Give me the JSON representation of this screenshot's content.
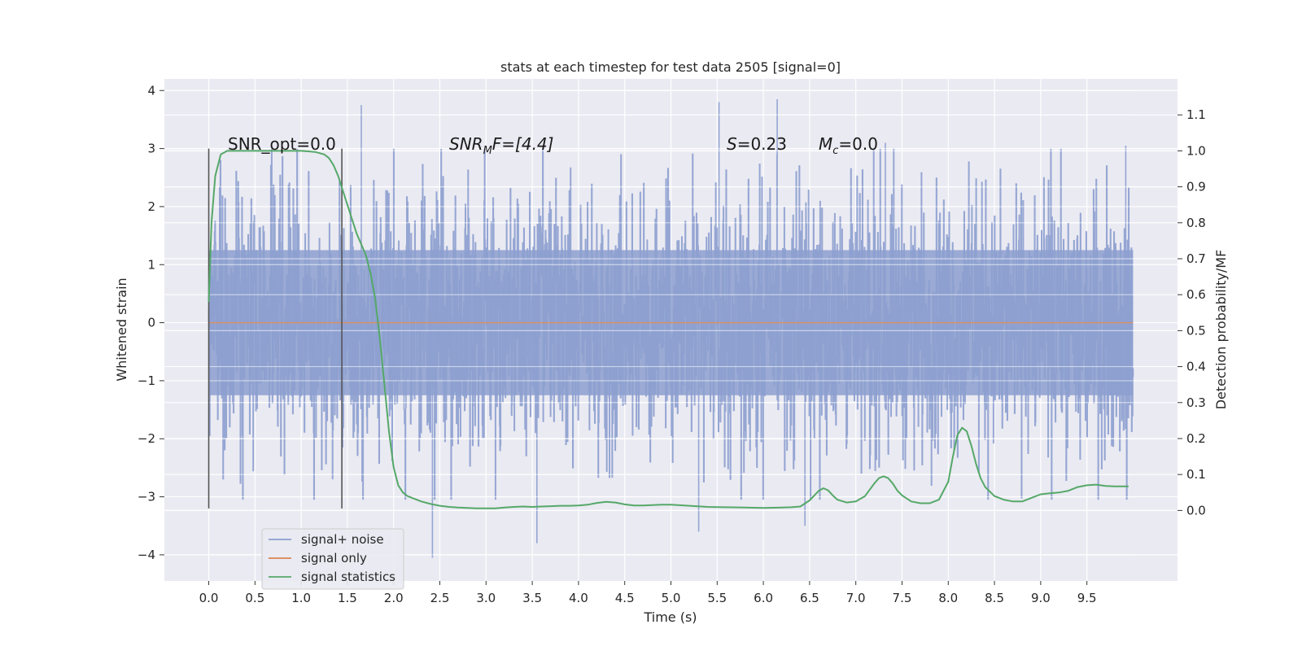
{
  "chart_data": {
    "type": "line",
    "title": "stats at each timestep for test data 2505 [signal=0]",
    "xlabel": "Time (s)",
    "ylabel": "Whitened strain",
    "y2label": "Detection probability/MF",
    "xlim": [
      -0.48,
      10.48
    ],
    "ylim": [
      -4.45,
      4.2
    ],
    "y2lim": [
      -0.196,
      1.2
    ],
    "x_ticks": [
      "0.0",
      "0.5",
      "1.0",
      "1.5",
      "2.0",
      "2.5",
      "3.0",
      "3.5",
      "4.0",
      "4.5",
      "5.0",
      "5.5",
      "6.0",
      "6.5",
      "7.0",
      "7.5",
      "8.0",
      "8.5",
      "9.0",
      "9.5"
    ],
    "y_ticks": [
      "4",
      "3",
      "2",
      "1",
      "0",
      "−1",
      "−2",
      "−3",
      "−4"
    ],
    "y2_ticks": [
      "1.1",
      "1.0",
      "0.9",
      "0.8",
      "0.7",
      "0.6",
      "0.5",
      "0.4",
      "0.3",
      "0.2",
      "0.1",
      "0.0"
    ],
    "grid": true,
    "legend_position": "lower-left",
    "colors": {
      "background": "#eaeaf2",
      "grid": "#ffffff",
      "signal_noise": "#8c9fcf",
      "signal_only": "#dd8452",
      "signal_statistics": "#55a868",
      "markers": "#555555"
    },
    "annotations": {
      "snr_opt": "SNR_opt=0.0",
      "snr_mf_base": "SNR",
      "snr_mf_sub": "M",
      "snr_mf_rest": "F=[4.4]",
      "s_italic": "S",
      "s_rest": "=0.23",
      "mc_base": "M",
      "mc_sub": "c",
      "mc_rest": "=0.0"
    },
    "vertical_markers": [
      0.0,
      1.44
    ],
    "series": [
      {
        "name": "signal+ noise",
        "kind": "noise",
        "x_range": [
          0.0,
          10.0
        ],
        "amplitude_core": 1.25,
        "notable_peaks": [
          {
            "x": 1.65,
            "y": 3.75
          },
          {
            "x": 5.52,
            "y": 3.8
          },
          {
            "x": 6.15,
            "y": 3.85
          },
          {
            "x": 7.32,
            "y": 3.1
          },
          {
            "x": 9.92,
            "y": 3.05
          },
          {
            "x": 2.42,
            "y": -4.05
          },
          {
            "x": 3.55,
            "y": -3.8
          },
          {
            "x": 5.3,
            "y": -3.6
          },
          {
            "x": 6.45,
            "y": -3.5
          }
        ]
      },
      {
        "name": "signal only",
        "kind": "line",
        "x": [
          0.0,
          10.0
        ],
        "y": [
          0.0,
          0.0
        ]
      },
      {
        "name": "signal statistics",
        "kind": "line",
        "axis": "right",
        "x": [
          0.0,
          0.03,
          0.07,
          0.13,
          0.2,
          0.3,
          0.5,
          0.8,
          1.0,
          1.15,
          1.25,
          1.3,
          1.35,
          1.4,
          1.45,
          1.5,
          1.55,
          1.6,
          1.65,
          1.7,
          1.75,
          1.8,
          1.85,
          1.9,
          1.95,
          2.0,
          2.05,
          2.1,
          2.15,
          2.2,
          2.3,
          2.4,
          2.5,
          2.6,
          2.7,
          2.8,
          2.9,
          3.0,
          3.1,
          3.2,
          3.3,
          3.4,
          3.5,
          3.6,
          3.7,
          3.8,
          3.9,
          4.0,
          4.1,
          4.2,
          4.3,
          4.4,
          4.5,
          4.6,
          4.7,
          4.8,
          4.9,
          5.0,
          5.2,
          5.4,
          5.6,
          5.8,
          6.0,
          6.2,
          6.3,
          6.4,
          6.5,
          6.6,
          6.65,
          6.7,
          6.75,
          6.8,
          6.9,
          7.0,
          7.1,
          7.2,
          7.25,
          7.3,
          7.35,
          7.4,
          7.45,
          7.5,
          7.6,
          7.7,
          7.8,
          7.9,
          8.0,
          8.05,
          8.1,
          8.15,
          8.2,
          8.25,
          8.3,
          8.35,
          8.4,
          8.5,
          8.6,
          8.7,
          8.8,
          8.9,
          9.0,
          9.1,
          9.2,
          9.3,
          9.4,
          9.5,
          9.6,
          9.7,
          9.8,
          9.9,
          9.95
        ],
        "y": [
          0.58,
          0.8,
          0.93,
          0.99,
          1.0,
          1.0,
          1.0,
          1.0,
          1.0,
          0.997,
          0.99,
          0.98,
          0.96,
          0.93,
          0.89,
          0.85,
          0.81,
          0.77,
          0.74,
          0.71,
          0.66,
          0.59,
          0.48,
          0.35,
          0.22,
          0.12,
          0.07,
          0.05,
          0.04,
          0.035,
          0.025,
          0.018,
          0.013,
          0.01,
          0.008,
          0.007,
          0.006,
          0.006,
          0.006,
          0.008,
          0.01,
          0.011,
          0.01,
          0.011,
          0.012,
          0.013,
          0.013,
          0.014,
          0.016,
          0.021,
          0.024,
          0.022,
          0.017,
          0.014,
          0.014,
          0.015,
          0.016,
          0.016,
          0.013,
          0.01,
          0.009,
          0.008,
          0.007,
          0.008,
          0.009,
          0.011,
          0.028,
          0.055,
          0.062,
          0.056,
          0.042,
          0.03,
          0.022,
          0.025,
          0.04,
          0.075,
          0.09,
          0.095,
          0.09,
          0.075,
          0.055,
          0.042,
          0.025,
          0.02,
          0.02,
          0.03,
          0.08,
          0.15,
          0.21,
          0.23,
          0.22,
          0.18,
          0.13,
          0.09,
          0.065,
          0.04,
          0.03,
          0.025,
          0.025,
          0.035,
          0.045,
          0.048,
          0.05,
          0.055,
          0.065,
          0.07,
          0.072,
          0.068,
          0.067,
          0.067,
          0.067
        ]
      }
    ]
  }
}
